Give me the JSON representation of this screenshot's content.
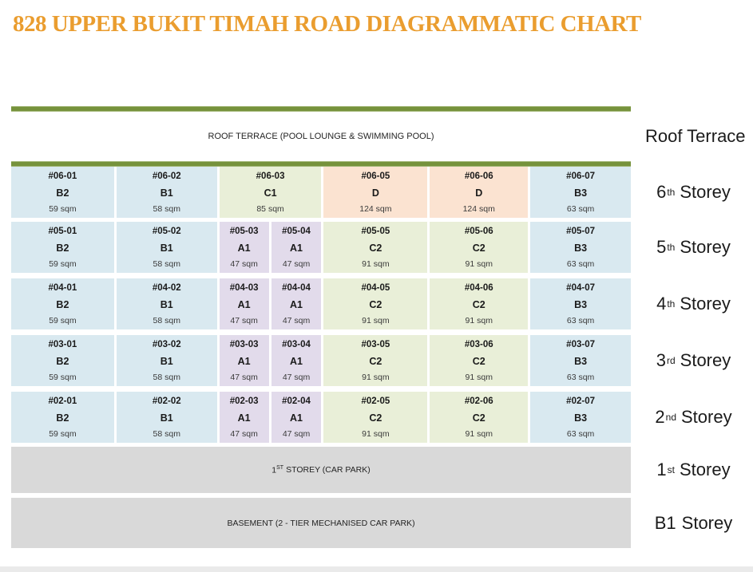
{
  "title": "828 UPPER BUKIT TIMAH ROAD DIAGRAMMATIC CHART",
  "palette": {
    "title_orange": "#ea9d2f",
    "bar_green": "#76923c",
    "bar_green_edge": "#a3b778",
    "unit_blue": "#d9e9f0",
    "unit_green": "#e9efd8",
    "unit_purple": "#e2dbeb",
    "unit_peach": "#fbe3d1",
    "carpark_gray": "#d9d9d9",
    "footer_gray": "#eaeaea",
    "text_dark": "#1f1f1f"
  },
  "roof": {
    "band_label": "ROOF TERRACE (POOL LOUNGE & SWIMMING POOL)",
    "side_label": "Roof Terrace"
  },
  "storeys": [
    {
      "side": {
        "num": "6",
        "sup": "th",
        "rest": "Storey"
      },
      "units": [
        {
          "no": "#06-01",
          "type": "B2",
          "area": "59 sqm"
        },
        {
          "no": "#06-02",
          "type": "B1",
          "area": "58 sqm"
        },
        {
          "no": "#06-03",
          "type": "C1",
          "area": "85 sqm"
        },
        {
          "no": "#06-05",
          "type": "D",
          "area": "124 sqm"
        },
        {
          "no": "#06-06",
          "type": "D",
          "area": "124 sqm"
        },
        {
          "no": "#06-07",
          "type": "B3",
          "area": "63 sqm"
        }
      ]
    },
    {
      "side": {
        "num": "5",
        "sup": "th",
        "rest": "Storey"
      },
      "units": [
        {
          "no": "#05-01",
          "type": "B2",
          "area": "59 sqm"
        },
        {
          "no": "#05-02",
          "type": "B1",
          "area": "58 sqm"
        },
        {
          "no": "#05-03",
          "type": "A1",
          "area": "47 sqm"
        },
        {
          "no": "#05-04",
          "type": "A1",
          "area": "47 sqm"
        },
        {
          "no": "#05-05",
          "type": "C2",
          "area": "91 sqm"
        },
        {
          "no": "#05-06",
          "type": "C2",
          "area": "91 sqm"
        },
        {
          "no": "#05-07",
          "type": "B3",
          "area": "63 sqm"
        }
      ]
    },
    {
      "side": {
        "num": "4",
        "sup": "th",
        "rest": "Storey"
      },
      "units": [
        {
          "no": "#04-01",
          "type": "B2",
          "area": "59 sqm"
        },
        {
          "no": "#04-02",
          "type": "B1",
          "area": "58 sqm"
        },
        {
          "no": "#04-03",
          "type": "A1",
          "area": "47 sqm"
        },
        {
          "no": "#04-04",
          "type": "A1",
          "area": "47 sqm"
        },
        {
          "no": "#04-05",
          "type": "C2",
          "area": "91 sqm"
        },
        {
          "no": "#04-06",
          "type": "C2",
          "area": "91 sqm"
        },
        {
          "no": "#04-07",
          "type": "B3",
          "area": "63 sqm"
        }
      ]
    },
    {
      "side": {
        "num": "3",
        "sup": "rd",
        "rest": "Storey"
      },
      "units": [
        {
          "no": "#03-01",
          "type": "B2",
          "area": "59 sqm"
        },
        {
          "no": "#03-02",
          "type": "B1",
          "area": "58 sqm"
        },
        {
          "no": "#03-03",
          "type": "A1",
          "area": "47 sqm"
        },
        {
          "no": "#03-04",
          "type": "A1",
          "area": "47 sqm"
        },
        {
          "no": "#03-05",
          "type": "C2",
          "area": "91 sqm"
        },
        {
          "no": "#03-06",
          "type": "C2",
          "area": "91 sqm"
        },
        {
          "no": "#03-07",
          "type": "B3",
          "area": "63 sqm"
        }
      ]
    },
    {
      "side": {
        "num": "2",
        "sup": "nd",
        "rest": "Storey"
      },
      "units": [
        {
          "no": "#02-01",
          "type": "B2",
          "area": "59 sqm"
        },
        {
          "no": "#02-02",
          "type": "B1",
          "area": "58 sqm"
        },
        {
          "no": "#02-03",
          "type": "A1",
          "area": "47 sqm"
        },
        {
          "no": "#02-04",
          "type": "A1",
          "area": "47 sqm"
        },
        {
          "no": "#02-05",
          "type": "C2",
          "area": "91 sqm"
        },
        {
          "no": "#02-06",
          "type": "C2",
          "area": "91 sqm"
        },
        {
          "no": "#02-07",
          "type": "B3",
          "area": "63 sqm"
        }
      ]
    }
  ],
  "carpark": {
    "first": {
      "pre": "1",
      "sup": "ST",
      "post": "STOREY (CAR PARK)",
      "side": {
        "num": "1",
        "sup": "st",
        "rest": "Storey"
      }
    },
    "basement": {
      "label": "BASEMENT (2 - TIER MECHANISED CAR PARK)",
      "side": {
        "num": "B1",
        "sup": "",
        "rest": "Storey"
      }
    }
  }
}
